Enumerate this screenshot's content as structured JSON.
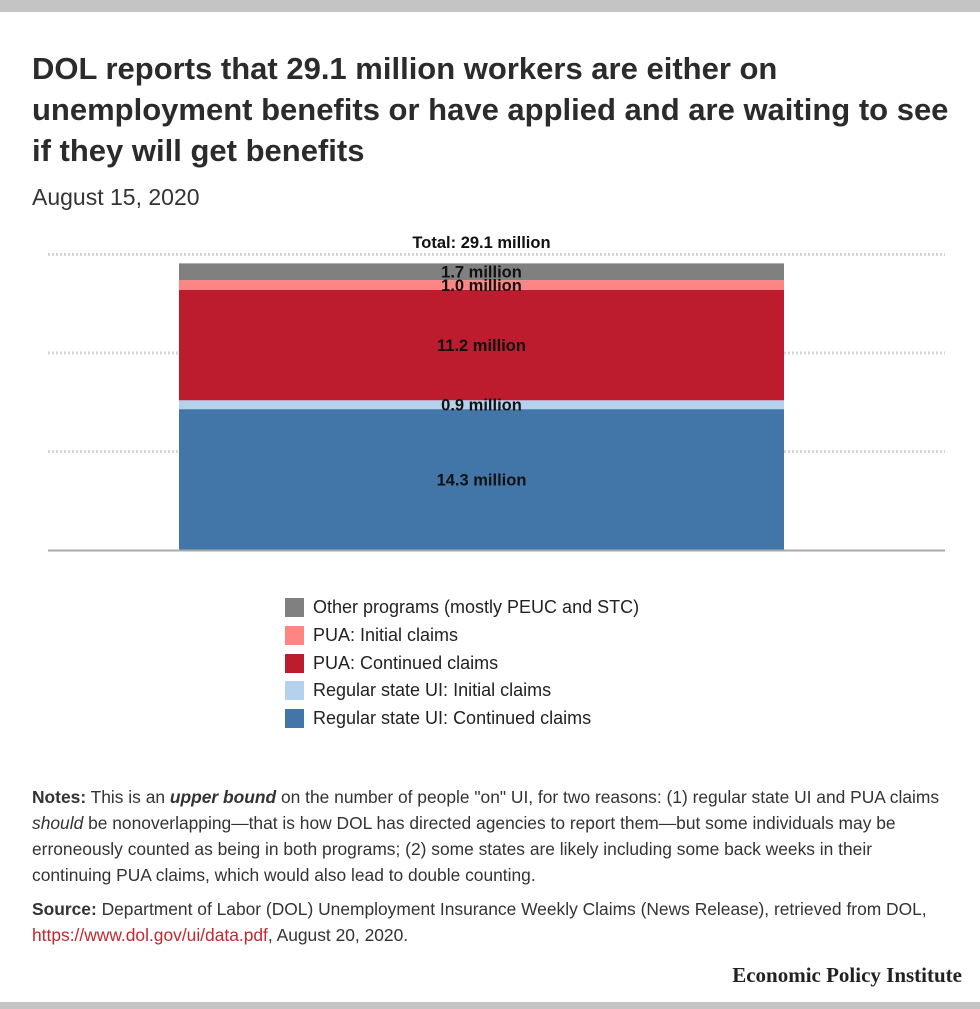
{
  "header": {
    "title": "DOL reports that 29.1 million workers are either on unemployment benefits or have applied and are waiting to see if they will get benefits",
    "subtitle": "August 15, 2020"
  },
  "chart_data": {
    "type": "bar",
    "stacked": true,
    "categories": [
      ""
    ],
    "ylim": [
      0,
      30
    ],
    "grid": true,
    "grid_values": [
      10,
      20,
      30
    ],
    "total_label": "Total: 29.1 million",
    "series": [
      {
        "name": "Regular state UI: Continued claims",
        "values": [
          14.3
        ],
        "label": "14.3 million",
        "color": "#4275a8"
      },
      {
        "name": "Regular state UI: Initial claims",
        "values": [
          0.9
        ],
        "label": "0.9 million",
        "color": "#b4d2ee"
      },
      {
        "name": "PUA: Continued claims",
        "values": [
          11.2
        ],
        "label": "11.2 million",
        "color": "#bc1c2d"
      },
      {
        "name": "PUA: Initial claims",
        "values": [
          1.0
        ],
        "label": "1.0 million",
        "color": "#fd8584"
      },
      {
        "name": "Other programs (mostly PEUC and STC)",
        "values": [
          1.7
        ],
        "label": "1.7 million",
        "color": "#808080"
      }
    ],
    "legend_position": "bottom"
  },
  "legend": [
    {
      "label": "Other programs (mostly PEUC and STC)",
      "color": "#808080"
    },
    {
      "label": "PUA: Initial claims",
      "color": "#fd8584"
    },
    {
      "label": "PUA: Continued claims",
      "color": "#bc1c2d"
    },
    {
      "label": "Regular state UI: Initial claims",
      "color": "#b4d2ee"
    },
    {
      "label": "Regular state UI: Continued claims",
      "color": "#4275a8"
    }
  ],
  "notes": {
    "label": "Notes:",
    "pre": " This is an ",
    "emph": "upper bound",
    "mid": " on the number of people \"on\" UI, for two reasons: (1) regular state UI and PUA claims ",
    "italic": "should",
    "post": " be nonoverlapping—that is how DOL has directed agencies to report them—but some individuals may be erroneously counted as being in both programs; (2) some states are likely including some back weeks in their continuing PUA claims, which would also lead to double counting."
  },
  "source": {
    "label": "Source:",
    "text": " Department of Labor (DOL) Unemployment Insurance Weekly Claims (News Release), retrieved from DOL, ",
    "link": "https://www.dol.gov/ui/data.pdf",
    "end": ", August 20, 2020."
  },
  "brand": "Economic Policy Institute"
}
